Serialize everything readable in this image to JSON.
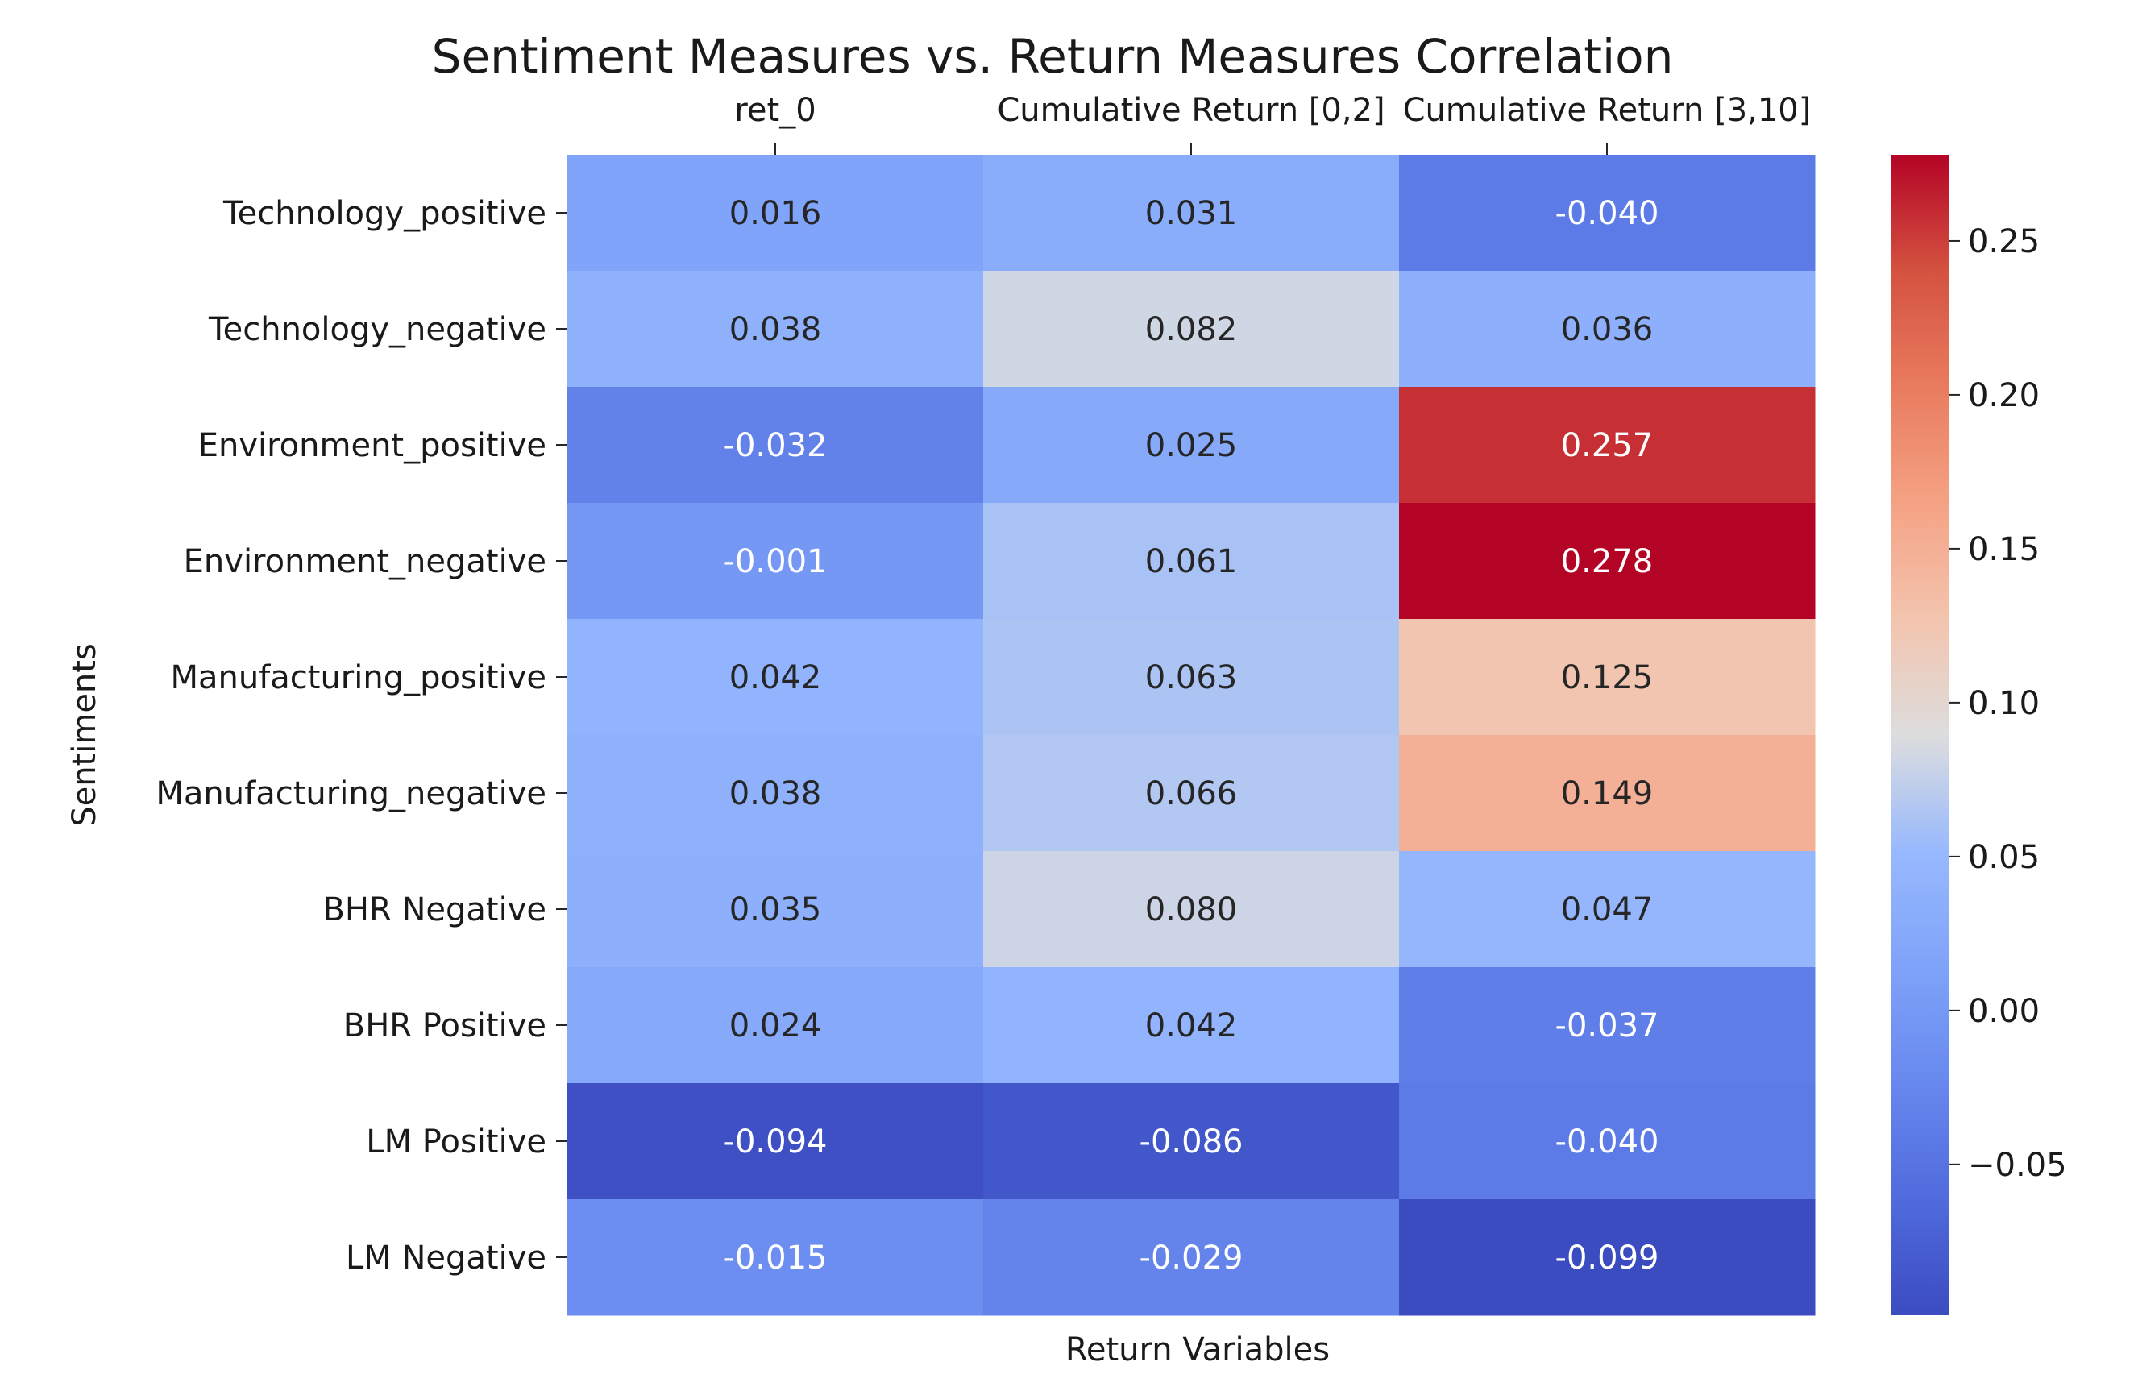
{
  "chart_data": {
    "type": "heatmap",
    "title": "Sentiment Measures vs. Return Measures Correlation",
    "xlabel": "Return Variables",
    "ylabel": "Sentiments",
    "columns": [
      "ret_0",
      "Cumulative Return [0,2]",
      "Cumulative Return [3,10]"
    ],
    "rows": [
      "Technology_positive",
      "Technology_negative",
      "Environment_positive",
      "Environment_negative",
      "Manufacturing_positive",
      "Manufacturing_negative",
      "BHR Negative",
      "BHR Positive",
      "LM Positive",
      "LM  Negative"
    ],
    "values": [
      [
        0.016,
        0.031,
        -0.04
      ],
      [
        0.038,
        0.082,
        0.036
      ],
      [
        -0.032,
        0.025,
        0.257
      ],
      [
        -0.001,
        0.061,
        0.278
      ],
      [
        0.042,
        0.063,
        0.125
      ],
      [
        0.038,
        0.066,
        0.149
      ],
      [
        0.035,
        0.08,
        0.047
      ],
      [
        0.024,
        0.042,
        -0.037
      ],
      [
        -0.094,
        -0.086,
        -0.04
      ],
      [
        -0.015,
        -0.029,
        -0.099
      ]
    ],
    "value_labels": [
      [
        "0.016",
        "0.031",
        "-0.040"
      ],
      [
        "0.038",
        "0.082",
        "0.036"
      ],
      [
        "-0.032",
        "0.025",
        "0.257"
      ],
      [
        "-0.001",
        "0.061",
        "0.278"
      ],
      [
        "0.042",
        "0.063",
        "0.125"
      ],
      [
        "0.038",
        "0.066",
        "0.149"
      ],
      [
        "0.035",
        "0.080",
        "0.047"
      ],
      [
        "0.024",
        "0.042",
        "-0.037"
      ],
      [
        "-0.094",
        "-0.086",
        "-0.040"
      ],
      [
        "-0.015",
        "-0.029",
        "-0.099"
      ]
    ],
    "colormap": "coolwarm",
    "vmin": -0.099,
    "vmax": 0.278,
    "x_axis_position": "top",
    "colorbar": {
      "ticks": [
        -0.05,
        0.0,
        0.05,
        0.1,
        0.15,
        0.2,
        0.25
      ],
      "tick_labels": [
        "−0.05",
        "0.00",
        "0.05",
        "0.10",
        "0.15",
        "0.20",
        "0.25"
      ],
      "position": "right"
    },
    "grid": false,
    "legend": "none"
  }
}
